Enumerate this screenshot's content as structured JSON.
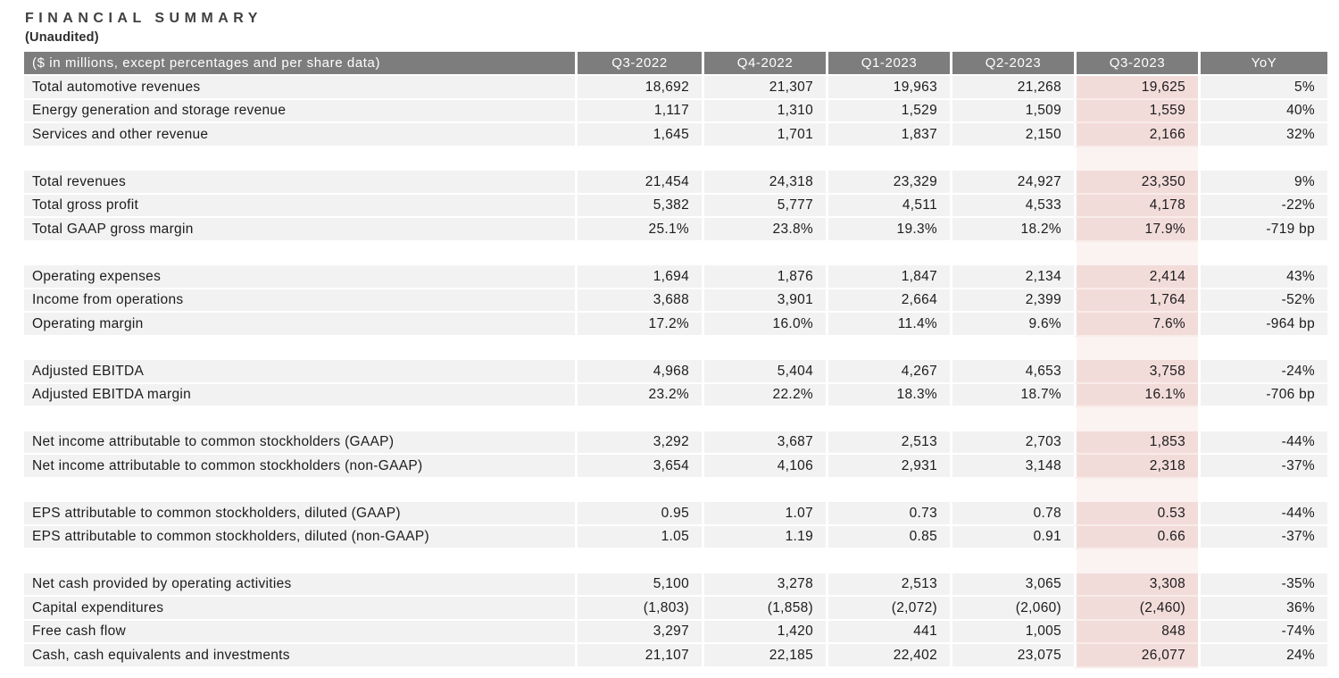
{
  "title": "FINANCIAL SUMMARY",
  "subtitle": "(Unaudited)",
  "colors": {
    "header_bg": "#7d7d7d",
    "header_text": "#ffffff",
    "row_bg": "#f2f2f2",
    "highlight_bg": "#f2dcda",
    "highlight_row_separator": "#f8ece9",
    "spacer_highlight_bg": "#fbf3f2",
    "text": "#1c1c1c",
    "title_text": "#3f3f3f",
    "subtitle_text": "#2e2e2e"
  },
  "table": {
    "header": [
      "($ in millions, except percentages and per share data)",
      "Q3-2022",
      "Q4-2022",
      "Q1-2023",
      "Q2-2023",
      "Q3-2023",
      "YoY"
    ],
    "highlight_column": "Q3-2023",
    "highlight_col_index": 5,
    "sections": [
      {
        "rows": [
          {
            "label": "Total automotive revenues",
            "values": [
              "18,692",
              "21,307",
              "19,963",
              "21,268",
              "19,625",
              "5%"
            ]
          },
          {
            "label": "Energy generation and storage revenue",
            "values": [
              "1,117",
              "1,310",
              "1,529",
              "1,509",
              "1,559",
              "40%"
            ]
          },
          {
            "label": "Services and other revenue",
            "values": [
              "1,645",
              "1,701",
              "1,837",
              "2,150",
              "2,166",
              "32%"
            ]
          }
        ]
      },
      {
        "rows": [
          {
            "label": "Total revenues",
            "values": [
              "21,454",
              "24,318",
              "23,329",
              "24,927",
              "23,350",
              "9%"
            ]
          },
          {
            "label": "Total gross profit",
            "values": [
              "5,382",
              "5,777",
              "4,511",
              "4,533",
              "4,178",
              "-22%"
            ]
          },
          {
            "label": "Total GAAP gross margin",
            "values": [
              "25.1%",
              "23.8%",
              "19.3%",
              "18.2%",
              "17.9%",
              "-719 bp"
            ]
          }
        ]
      },
      {
        "rows": [
          {
            "label": "Operating expenses",
            "values": [
              "1,694",
              "1,876",
              "1,847",
              "2,134",
              "2,414",
              "43%"
            ]
          },
          {
            "label": "Income from operations",
            "values": [
              "3,688",
              "3,901",
              "2,664",
              "2,399",
              "1,764",
              "-52%"
            ]
          },
          {
            "label": "Operating margin",
            "values": [
              "17.2%",
              "16.0%",
              "11.4%",
              "9.6%",
              "7.6%",
              "-964 bp"
            ]
          }
        ]
      },
      {
        "rows": [
          {
            "label": "Adjusted EBITDA",
            "values": [
              "4,968",
              "5,404",
              "4,267",
              "4,653",
              "3,758",
              "-24%"
            ]
          },
          {
            "label": "Adjusted EBITDA margin",
            "values": [
              "23.2%",
              "22.2%",
              "18.3%",
              "18.7%",
              "16.1%",
              "-706 bp"
            ]
          }
        ]
      },
      {
        "rows": [
          {
            "label": "Net income attributable to common stockholders (GAAP)",
            "values": [
              "3,292",
              "3,687",
              "2,513",
              "2,703",
              "1,853",
              "-44%"
            ]
          },
          {
            "label": "Net income attributable to common stockholders (non-GAAP)",
            "values": [
              "3,654",
              "4,106",
              "2,931",
              "3,148",
              "2,318",
              "-37%"
            ]
          }
        ]
      },
      {
        "rows": [
          {
            "label": "EPS attributable to common stockholders, diluted (GAAP)",
            "values": [
              "0.95",
              "1.07",
              "0.73",
              "0.78",
              "0.53",
              "-44%"
            ]
          },
          {
            "label": "EPS attributable to common stockholders, diluted (non-GAAP)",
            "values": [
              "1.05",
              "1.19",
              "0.85",
              "0.91",
              "0.66",
              "-37%"
            ]
          }
        ]
      },
      {
        "rows": [
          {
            "label": "Net cash provided by operating activities",
            "values": [
              "5,100",
              "3,278",
              "2,513",
              "3,065",
              "3,308",
              "-35%"
            ]
          },
          {
            "label": "Capital expenditures",
            "values": [
              "(1,803)",
              "(1,858)",
              "(2,072)",
              "(2,060)",
              "(2,460)",
              "36%"
            ]
          },
          {
            "label": "Free cash flow",
            "values": [
              "3,297",
              "1,420",
              "441",
              "1,005",
              "848",
              "-74%"
            ]
          },
          {
            "label": "Cash, cash equivalents and investments",
            "values": [
              "21,107",
              "22,185",
              "22,402",
              "23,075",
              "26,077",
              "24%"
            ]
          }
        ]
      }
    ]
  }
}
